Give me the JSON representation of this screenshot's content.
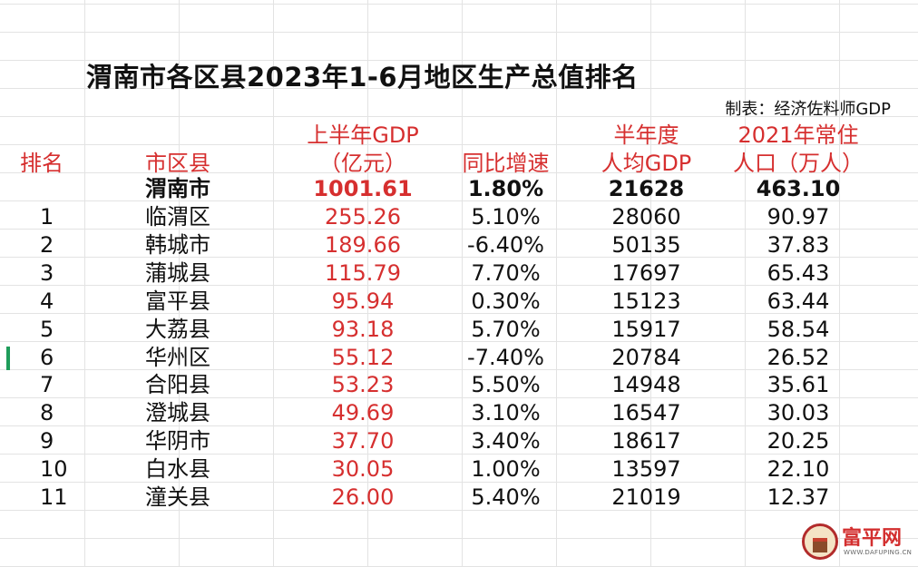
{
  "title": "渭南市各区县2023年1-6月地区生产总值排名",
  "source": "制表：经济佐料师GDP",
  "headers": {
    "rank": "排名",
    "name": "市区县",
    "gdp": [
      "上半年GDP",
      "（亿元）"
    ],
    "yoy": "同比增速",
    "per_capita": [
      "半年度",
      "人均GDP"
    ],
    "population": [
      "2021年常住",
      "人口（万人）"
    ]
  },
  "total": {
    "name": "渭南市",
    "gdp": "1001.61",
    "yoy": "1.80%",
    "per_capita": "21628",
    "population": "463.10"
  },
  "rows": [
    {
      "rank": "1",
      "name": "临渭区",
      "gdp": "255.26",
      "yoy": "5.10%",
      "per_capita": "28060",
      "population": "90.97"
    },
    {
      "rank": "2",
      "name": "韩城市",
      "gdp": "189.66",
      "yoy": "-6.40%",
      "per_capita": "50135",
      "population": "37.83"
    },
    {
      "rank": "3",
      "name": "蒲城县",
      "gdp": "115.79",
      "yoy": "7.70%",
      "per_capita": "17697",
      "population": "65.43"
    },
    {
      "rank": "4",
      "name": "富平县",
      "gdp": "95.94",
      "yoy": "0.30%",
      "per_capita": "15123",
      "population": "63.44"
    },
    {
      "rank": "5",
      "name": "大荔县",
      "gdp": "93.18",
      "yoy": "5.70%",
      "per_capita": "15917",
      "population": "58.54"
    },
    {
      "rank": "6",
      "name": "华州区",
      "gdp": "55.12",
      "yoy": "-7.40%",
      "per_capita": "20784",
      "population": "26.52"
    },
    {
      "rank": "7",
      "name": "合阳县",
      "gdp": "53.23",
      "yoy": "5.50%",
      "per_capita": "14948",
      "population": "35.61"
    },
    {
      "rank": "8",
      "name": "澄城县",
      "gdp": "49.69",
      "yoy": "3.10%",
      "per_capita": "16547",
      "population": "30.03"
    },
    {
      "rank": "9",
      "name": "华阴市",
      "gdp": "37.70",
      "yoy": "3.40%",
      "per_capita": "18617",
      "population": "20.25"
    },
    {
      "rank": "10",
      "name": "白水县",
      "gdp": "30.05",
      "yoy": "1.00%",
      "per_capita": "13597",
      "population": "22.10"
    },
    {
      "rank": "11",
      "name": "潼关县",
      "gdp": "26.00",
      "yoy": "5.40%",
      "per_capita": "21019",
      "population": "12.37"
    }
  ],
  "logo": {
    "name": "富平网",
    "domain": "WWW.DAFUPING.CN"
  },
  "colors": {
    "accent_red": "#d62f2f",
    "grid": "#e3e3e3",
    "selection": "#1e9c5a"
  }
}
